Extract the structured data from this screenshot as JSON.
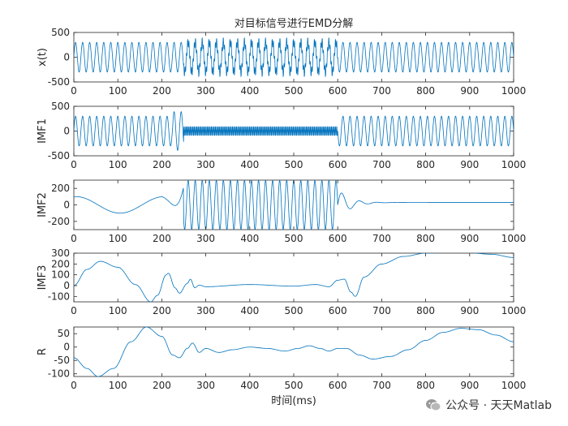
{
  "chart_data": [
    {
      "type": "line",
      "title": "对目标信号进行EMD分解",
      "ylabel": "x(t)",
      "xlabel": "",
      "xlim": [
        0,
        1000
      ],
      "ylim": [
        -500,
        500
      ],
      "x_ticks": [
        "0",
        "100",
        "200",
        "300",
        "400",
        "500",
        "600",
        "700",
        "800",
        "900",
        "1000"
      ],
      "y_ticks": [
        "-500",
        "0",
        "500"
      ],
      "series": [
        {
          "kind": "sine",
          "amplitude": 300,
          "period": 16,
          "burst": {
            "from": 250,
            "to": 600,
            "amplitude": 100,
            "period": 3
          }
        }
      ]
    },
    {
      "type": "line",
      "title": "",
      "ylabel": "IMF1",
      "xlabel": "",
      "xlim": [
        0,
        1000
      ],
      "ylim": [
        -500,
        500
      ],
      "x_ticks": [
        "0",
        "100",
        "200",
        "300",
        "400",
        "500",
        "600",
        "700",
        "800",
        "900",
        "1000"
      ],
      "y_ticks": [
        "-500",
        "0",
        "500"
      ],
      "series": [
        {
          "kind": "imf1",
          "amplitude": 300,
          "period": 16,
          "burst": {
            "from": 250,
            "to": 600,
            "amplitude": 100,
            "period": 3
          }
        }
      ]
    },
    {
      "type": "line",
      "title": "",
      "ylabel": "IMF2",
      "xlabel": "",
      "xlim": [
        0,
        1000
      ],
      "ylim": [
        -300,
        300
      ],
      "x_ticks": [
        "0",
        "100",
        "200",
        "300",
        "400",
        "500",
        "600",
        "700",
        "800",
        "900",
        "1000"
      ],
      "y_ticks": [
        "-200",
        "0",
        "200"
      ],
      "series": [
        {
          "kind": "imf2",
          "amplitude": 300,
          "period": 16,
          "from": 250,
          "to": 600
        }
      ]
    },
    {
      "type": "line",
      "title": "",
      "ylabel": "IMF3",
      "xlabel": "",
      "xlim": [
        0,
        1000
      ],
      "ylim": [
        -150,
        300
      ],
      "x_ticks": [
        "0",
        "100",
        "200",
        "300",
        "400",
        "500",
        "600",
        "700",
        "800",
        "900",
        "1000"
      ],
      "y_ticks": [
        "-100",
        "0",
        "100",
        "200",
        "300"
      ],
      "series": [
        {
          "kind": "keypoints",
          "points": [
            [
              0,
              0
            ],
            [
              30,
              150
            ],
            [
              60,
              225
            ],
            [
              100,
              170
            ],
            [
              140,
              10
            ],
            [
              175,
              -150
            ],
            [
              190,
              -90
            ],
            [
              210,
              100
            ],
            [
              215,
              115
            ],
            [
              230,
              -20
            ],
            [
              240,
              -70
            ],
            [
              258,
              20
            ],
            [
              265,
              60
            ],
            [
              275,
              -20
            ],
            [
              285,
              5
            ],
            [
              300,
              -10
            ],
            [
              400,
              10
            ],
            [
              500,
              -5
            ],
            [
              550,
              10
            ],
            [
              580,
              -10
            ],
            [
              600,
              50
            ],
            [
              615,
              60
            ],
            [
              630,
              -60
            ],
            [
              640,
              -100
            ],
            [
              660,
              80
            ],
            [
              700,
              200
            ],
            [
              750,
              270
            ],
            [
              800,
              300
            ],
            [
              880,
              310
            ],
            [
              950,
              290
            ],
            [
              1000,
              260
            ]
          ]
        }
      ]
    },
    {
      "type": "line",
      "title": "",
      "ylabel": "R",
      "xlabel": "时间(ms)",
      "xlim": [
        0,
        1000
      ],
      "ylim": [
        -110,
        75
      ],
      "x_ticks": [
        "0",
        "100",
        "200",
        "300",
        "400",
        "500",
        "600",
        "700",
        "800",
        "900",
        "1000"
      ],
      "y_ticks": [
        "-100",
        "-50",
        "0",
        "50"
      ],
      "series": [
        {
          "kind": "keypoints",
          "points": [
            [
              0,
              -40
            ],
            [
              30,
              -80
            ],
            [
              55,
              -110
            ],
            [
              90,
              -80
            ],
            [
              130,
              20
            ],
            [
              165,
              75
            ],
            [
              200,
              40
            ],
            [
              225,
              -30
            ],
            [
              240,
              -40
            ],
            [
              258,
              -5
            ],
            [
              270,
              15
            ],
            [
              285,
              -20
            ],
            [
              300,
              -5
            ],
            [
              330,
              -20
            ],
            [
              360,
              -10
            ],
            [
              400,
              0
            ],
            [
              440,
              -5
            ],
            [
              480,
              -15
            ],
            [
              510,
              -5
            ],
            [
              535,
              5
            ],
            [
              560,
              -5
            ],
            [
              580,
              -15
            ],
            [
              600,
              -5
            ],
            [
              620,
              -5
            ],
            [
              650,
              -30
            ],
            [
              680,
              -45
            ],
            [
              720,
              -35
            ],
            [
              760,
              -10
            ],
            [
              800,
              25
            ],
            [
              840,
              55
            ],
            [
              880,
              70
            ],
            [
              920,
              65
            ],
            [
              960,
              45
            ],
            [
              1000,
              20
            ]
          ]
        }
      ]
    }
  ],
  "watermark": {
    "text": "公众号 · 天天Matlab"
  }
}
